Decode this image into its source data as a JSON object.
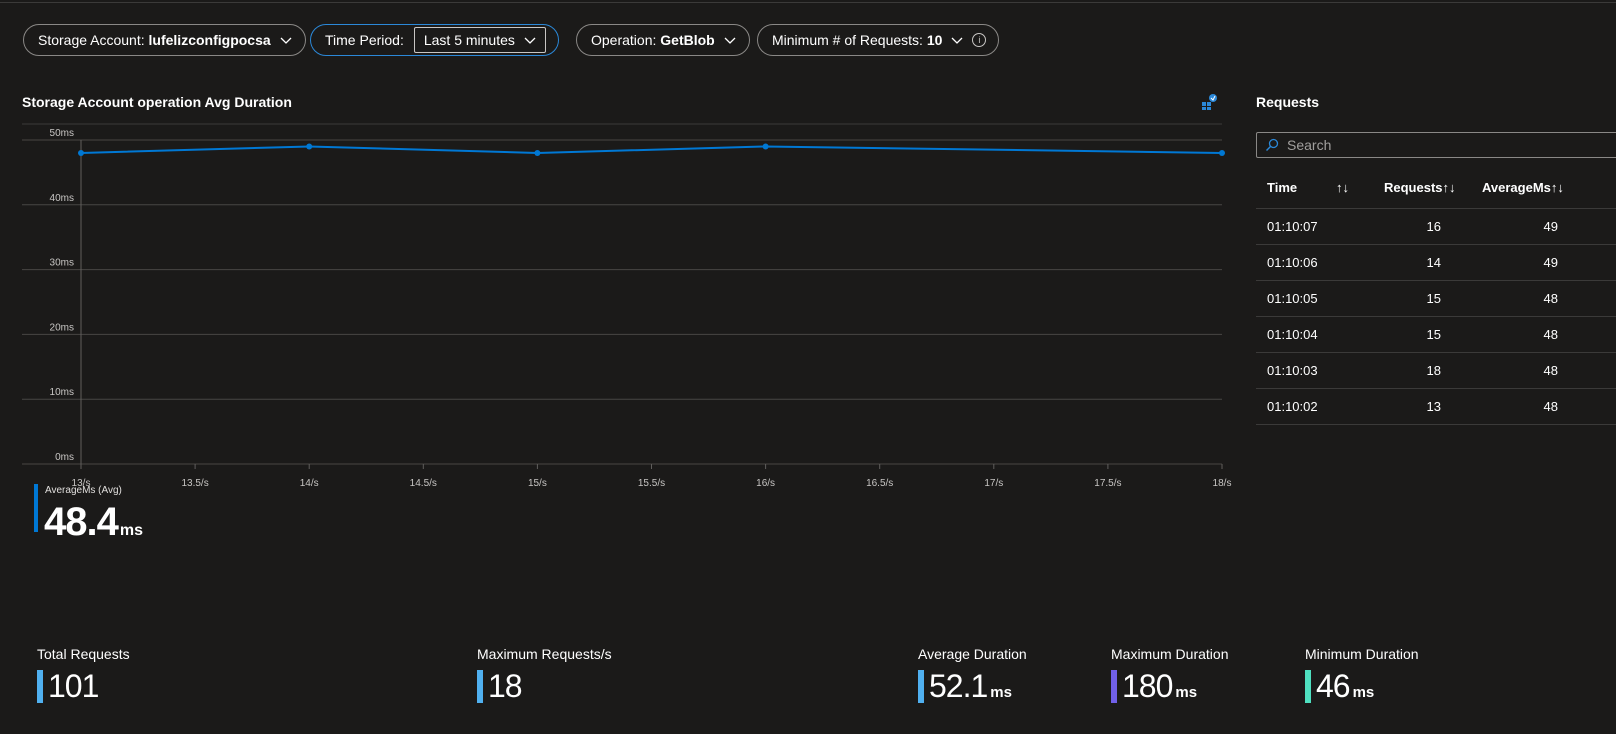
{
  "filters": {
    "storage_account_label": "Storage Account:",
    "storage_account_value": "lufelizconfigpocsa",
    "time_period_label": "Time Period:",
    "time_period_value": "Last 5 minutes",
    "operation_label": "Operation:",
    "operation_value": "GetBlob",
    "min_requests_label": "Minimum # of Requests:",
    "min_requests_value": "10"
  },
  "chart_title": "Storage Account operation Avg Duration",
  "chart_data": {
    "type": "line",
    "title": "Storage Account operation Avg Duration",
    "xlabel": "",
    "ylabel": "",
    "x": [
      "13/s",
      "14/s",
      "15/s",
      "16/s",
      "18/s"
    ],
    "x_values": [
      13,
      14,
      15,
      16,
      18
    ],
    "series": [
      {
        "name": "AverageMs (Avg)",
        "values": [
          48,
          49,
          48,
          49,
          48
        ],
        "color": "#0078d4"
      }
    ],
    "x_ticks": [
      "13/s",
      "13.5/s",
      "14/s",
      "14.5/s",
      "15/s",
      "15.5/s",
      "16/s",
      "16.5/s",
      "17/s",
      "17.5/s",
      "18/s"
    ],
    "x_tick_values": [
      13,
      13.5,
      14,
      14.5,
      15,
      15.5,
      16,
      16.5,
      17,
      17.5,
      18
    ],
    "y_ticks": [
      "0ms",
      "10ms",
      "20ms",
      "30ms",
      "40ms",
      "50ms"
    ],
    "y_tick_values": [
      0,
      10,
      20,
      30,
      40,
      50
    ],
    "xlim": [
      13,
      18
    ],
    "ylim": [
      0,
      50
    ],
    "grid": true
  },
  "legend": {
    "label": "AverageMs (Avg)",
    "value": "48.4",
    "unit": "ms",
    "color": "#0078d4"
  },
  "requests": {
    "title": "Requests",
    "search_placeholder": "Search",
    "columns": [
      "Time",
      "Requests",
      "AverageMs"
    ],
    "sort_glyph": "↑↓",
    "rows": [
      {
        "time": "01:10:07",
        "requests": "16",
        "avg": "49"
      },
      {
        "time": "01:10:06",
        "requests": "14",
        "avg": "49"
      },
      {
        "time": "01:10:05",
        "requests": "15",
        "avg": "48"
      },
      {
        "time": "01:10:04",
        "requests": "15",
        "avg": "48"
      },
      {
        "time": "01:10:03",
        "requests": "18",
        "avg": "48"
      },
      {
        "time": "01:10:02",
        "requests": "13",
        "avg": "48"
      }
    ]
  },
  "stats": {
    "total_requests": {
      "label": "Total Requests",
      "value": "101",
      "color": "#50b0f0"
    },
    "max_requests": {
      "label": "Maximum Requests/s",
      "value": "18",
      "color": "#50b0f0"
    },
    "avg_duration": {
      "label": "Average Duration",
      "value": "52.1",
      "unit": "ms",
      "color": "#50b0f0"
    },
    "max_duration": {
      "label": "Maximum Duration",
      "value": "180",
      "unit": "ms",
      "color": "#7160e8"
    },
    "min_duration": {
      "label": "Minimum Duration",
      "value": "46",
      "unit": "ms",
      "color": "#4fe0c0"
    }
  }
}
